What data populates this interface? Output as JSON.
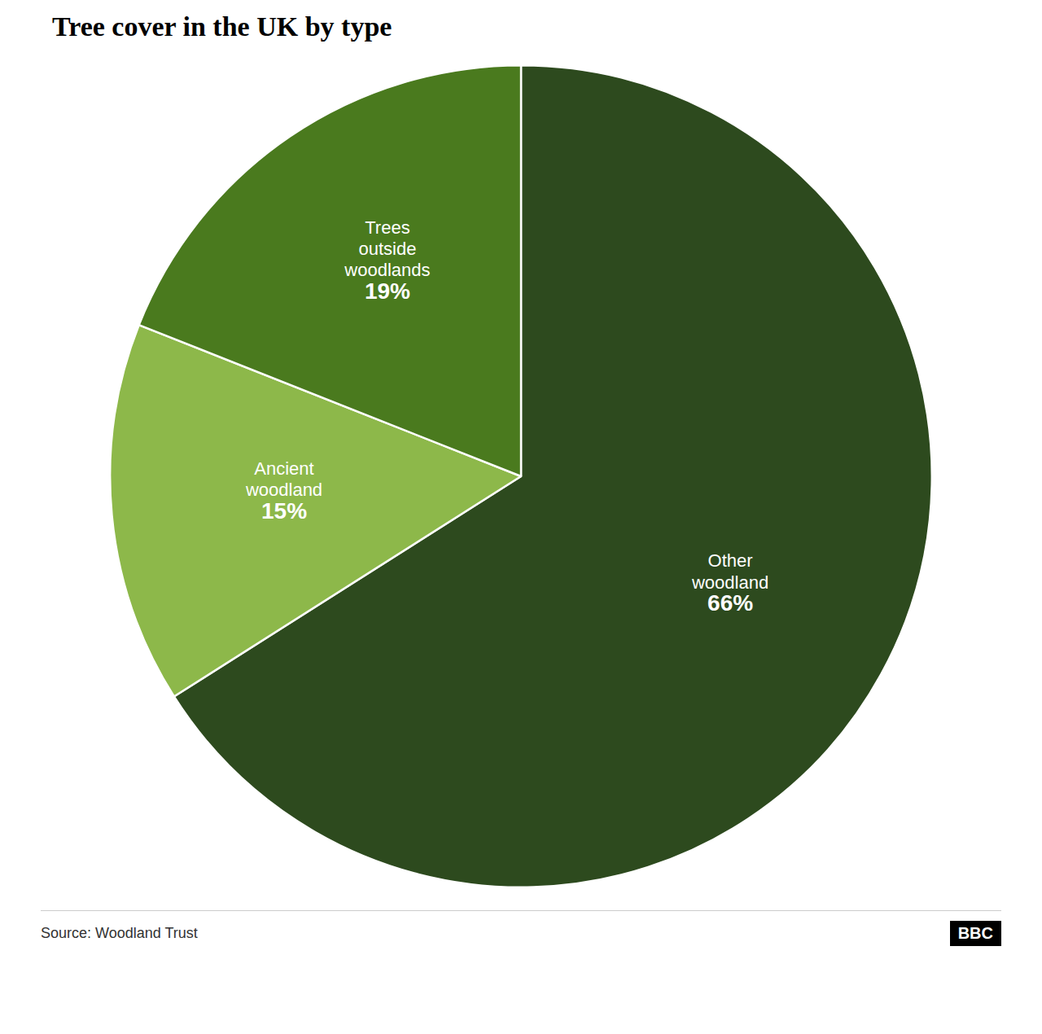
{
  "chart_data": {
    "type": "pie",
    "title": "Tree cover in the UK by type",
    "categories": [
      "Other\nwoodland",
      "Ancient\nwoodland",
      "Trees\noutside\nwoodlands"
    ],
    "values": [
      66,
      15,
      19
    ],
    "value_labels": [
      "66%",
      "15%",
      "19%"
    ],
    "colors": [
      "#2d4a1e",
      "#8db84a",
      "#4a7a1e"
    ],
    "data_labels": true,
    "annotations": [
      "Source: Woodland Trust",
      "BBC"
    ]
  }
}
